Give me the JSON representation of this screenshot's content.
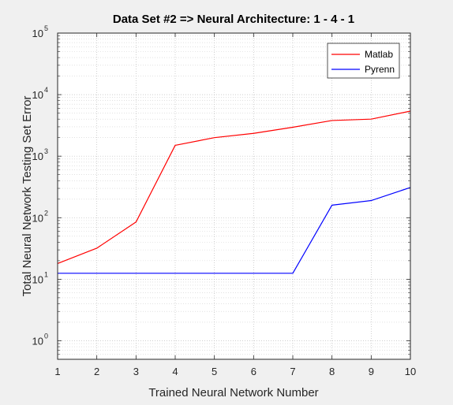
{
  "chart_data": {
    "type": "line",
    "title": "Data Set #2 => Neural Architecture: 1 - 4 - 1",
    "xlabel": "Trained Neural Network Number",
    "ylabel": "Total Neural Network Testing Set Error",
    "x": [
      1,
      2,
      3,
      4,
      5,
      6,
      7,
      8,
      9,
      10
    ],
    "xlim": [
      1,
      10
    ],
    "ylim": [
      0.5,
      100000
    ],
    "yscale": "log",
    "xticks": [
      "1",
      "2",
      "3",
      "4",
      "5",
      "6",
      "7",
      "8",
      "9",
      "10"
    ],
    "yticks": [
      {
        "base": "10",
        "exp": "0",
        "value": 1
      },
      {
        "base": "10",
        "exp": "1",
        "value": 10
      },
      {
        "base": "10",
        "exp": "2",
        "value": 100
      },
      {
        "base": "10",
        "exp": "3",
        "value": 1000
      },
      {
        "base": "10",
        "exp": "4",
        "value": 10000
      },
      {
        "base": "10",
        "exp": "5",
        "value": 100000
      }
    ],
    "grid": true,
    "minor_grid": true,
    "legend": "top-right",
    "series": [
      {
        "name": "Matlab",
        "color": "#ff0000",
        "values": [
          18,
          32,
          85,
          1500,
          2000,
          2350,
          2950,
          3800,
          4000,
          5400
        ]
      },
      {
        "name": "Pyrenn",
        "color": "#0000ff",
        "values": [
          12.5,
          12.5,
          12.5,
          12.5,
          12.5,
          12.5,
          12.5,
          160,
          190,
          310
        ]
      }
    ]
  }
}
